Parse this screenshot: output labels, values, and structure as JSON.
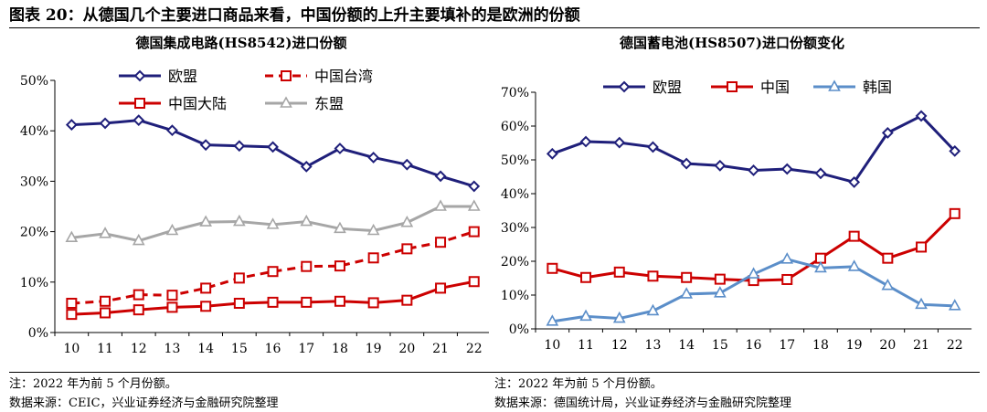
{
  "figure_title": "图表 20：从德国几个主要进口商品来看，中国份额的上升主要填补的是欧洲的份额",
  "colors": {
    "eu": "#1f1f7a",
    "china": "#cc0000",
    "asean": "#a6a6a6",
    "korea": "#5b8ec9"
  },
  "chart_data": [
    {
      "type": "line",
      "title": "德国集成电路(HS8542)进口份额",
      "x": [
        "10",
        "11",
        "12",
        "13",
        "14",
        "15",
        "16",
        "17",
        "18",
        "19",
        "20",
        "21",
        "22"
      ],
      "ylim": [
        0,
        50
      ],
      "yticks": [
        "0%",
        "10%",
        "20%",
        "30%",
        "40%",
        "50%"
      ],
      "legend": "top-left, two columns",
      "series": [
        {
          "name": "欧盟",
          "color": "#1f1f7a",
          "marker": "diamond",
          "dash": false,
          "values": [
            41.2,
            41.5,
            42.1,
            40.1,
            37.2,
            37.0,
            36.8,
            32.9,
            36.5,
            34.7,
            33.3,
            31.0,
            29.0
          ]
        },
        {
          "name": "中国台湾",
          "color": "#cc0000",
          "marker": "square",
          "dash": true,
          "values": [
            5.8,
            6.2,
            7.5,
            7.4,
            8.8,
            10.8,
            12.1,
            13.1,
            13.2,
            14.8,
            16.6,
            17.9,
            20.0
          ]
        },
        {
          "name": "中国大陆",
          "color": "#cc0000",
          "marker": "square",
          "dash": false,
          "values": [
            3.6,
            3.9,
            4.5,
            5.0,
            5.2,
            5.8,
            6.0,
            6.0,
            6.2,
            5.9,
            6.4,
            8.8,
            10.1
          ]
        },
        {
          "name": "东盟",
          "color": "#a6a6a6",
          "marker": "triangle",
          "dash": false,
          "values": [
            18.8,
            19.6,
            18.2,
            20.2,
            21.9,
            22.0,
            21.4,
            22.0,
            20.6,
            20.2,
            21.8,
            25.0,
            25.0
          ]
        }
      ]
    },
    {
      "type": "line",
      "title": "德国蓄电池(HS8507)进口份额变化",
      "x": [
        "10",
        "11",
        "12",
        "13",
        "14",
        "15",
        "16",
        "17",
        "18",
        "19",
        "20",
        "21",
        "22"
      ],
      "ylim": [
        0,
        70
      ],
      "yticks": [
        "0%",
        "10%",
        "20%",
        "30%",
        "40%",
        "50%",
        "60%",
        "70%"
      ],
      "legend": "top, one row",
      "series": [
        {
          "name": "欧盟",
          "color": "#1f1f7a",
          "marker": "diamond",
          "dash": false,
          "values": [
            51.8,
            55.4,
            55.1,
            53.8,
            48.9,
            48.3,
            46.9,
            47.3,
            46.0,
            43.4,
            58.0,
            63.0,
            52.6
          ]
        },
        {
          "name": "中国",
          "color": "#cc0000",
          "marker": "square",
          "dash": false,
          "values": [
            17.9,
            15.2,
            16.8,
            15.6,
            15.2,
            14.7,
            14.3,
            14.6,
            20.9,
            27.4,
            20.9,
            24.2,
            34.1
          ]
        },
        {
          "name": "韩国",
          "color": "#5b8ec9",
          "marker": "triangle",
          "dash": false,
          "values": [
            2.2,
            3.7,
            3.1,
            5.3,
            10.3,
            10.6,
            16.2,
            20.6,
            18.0,
            18.4,
            12.8,
            7.2,
            6.8
          ]
        }
      ]
    }
  ],
  "notes_left": [
    "注：2022 年为前 5 个月份额。",
    "数据来源：CEIC，兴业证券经济与金融研究院整理"
  ],
  "notes_right": [
    "注：2022 年为前 5 个月份额。",
    "数据来源：德国统计局，兴业证券经济与金融研究院整理"
  ]
}
